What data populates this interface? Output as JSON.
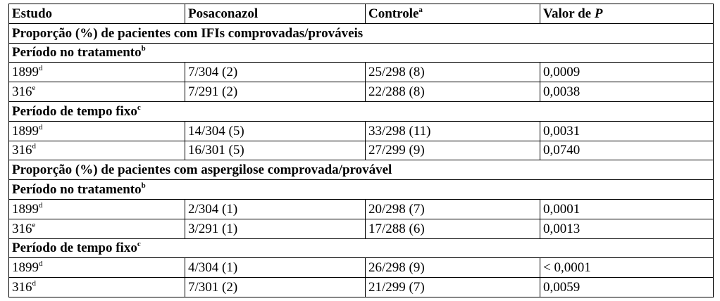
{
  "table": {
    "header": [
      {
        "text": "Estudo"
      },
      {
        "text": "Posaconazol"
      },
      {
        "text": "Controle",
        "sup": "a"
      },
      {
        "text": "Valor de",
        "em": "P"
      }
    ],
    "sections": [
      {
        "title": "Proporção (%) de pacientes com IFIs comprovadas/prováveis",
        "groups": [
          {
            "title": "Período no tratamento",
            "sup": "b",
            "rows": [
              {
                "study": "1899",
                "sup": "d",
                "cells": [
                  "7/304 (2)",
                  "25/298 (8)",
                  "0,0009"
                ]
              },
              {
                "study": "316",
                "sup": "e",
                "cells": [
                  "7/291 (2)",
                  "22/288 (8)",
                  "0,0038"
                ]
              }
            ]
          },
          {
            "title": "Período de tempo fixo",
            "sup": "c",
            "rows": [
              {
                "study": "1899",
                "sup": "d",
                "cells": [
                  "14/304 (5)",
                  "33/298 (11)",
                  "0,0031"
                ]
              },
              {
                "study": "316",
                "sup": "d",
                "cells": [
                  "16/301 (5)",
                  "27/299 (9)",
                  "0,0740"
                ]
              }
            ]
          }
        ]
      },
      {
        "title": "Proporção (%) de pacientes com aspergilose comprovada/provável",
        "groups": [
          {
            "title": "Período no tratamento",
            "sup": "b",
            "rows": [
              {
                "study": "1899",
                "sup": "d",
                "cells": [
                  "2/304 (1)",
                  "20/298 (7)",
                  "0,0001"
                ]
              },
              {
                "study": "316",
                "sup": "e",
                "cells": [
                  "3/291 (1)",
                  "17/288 (6)",
                  "0,0013"
                ]
              }
            ]
          },
          {
            "title": "Período de tempo fixo",
            "sup": "c",
            "rows": [
              {
                "study": "1899",
                "sup": "d",
                "cells": [
                  "4/304 (1)",
                  "26/298 (9)",
                  "< 0,0001"
                ]
              },
              {
                "study": "316",
                "sup": "d",
                "cells": [
                  "7/301 (2)",
                  "21/299 (7)",
                  "0,0059"
                ]
              }
            ]
          }
        ]
      }
    ]
  }
}
